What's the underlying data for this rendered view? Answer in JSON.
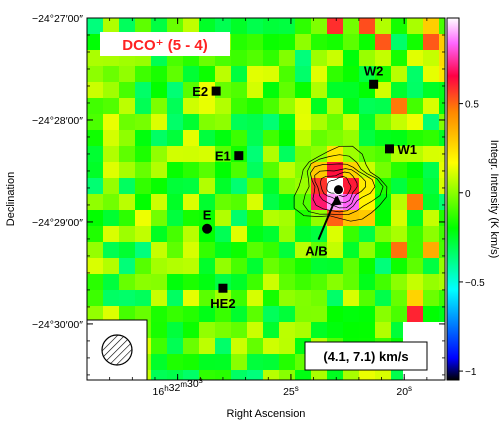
{
  "chart_data": {
    "type": "heatmap",
    "title": "DCO⁺ (5 - 4)",
    "velocity_label": "(4.1, 7.1) km/s",
    "xlabel": "Right Ascension",
    "ylabel": "Declination",
    "colorbar_label": "Integr. Intensity (K km/s)",
    "x_ticks": [
      {
        "label_parts": [
          "16",
          "h",
          "32",
          "m",
          "30",
          "s"
        ],
        "ra_sec": 30
      },
      {
        "label_parts": [
          "25",
          "s"
        ],
        "ra_sec": 25
      },
      {
        "label_parts": [
          "20",
          "s"
        ],
        "ra_sec": 20
      }
    ],
    "y_ticks": [
      {
        "label": "−24°27′00″",
        "dec_arcsec": 0
      },
      {
        "label": "−24°28′00″",
        "dec_arcsec": -60
      },
      {
        "label": "−24°29′00″",
        "dec_arcsec": -120
      },
      {
        "label": "−24°30′00″",
        "dec_arcsec": -180
      }
    ],
    "ra_range_sec": [
      34,
      18.2
    ],
    "dec_range_arcsec": [
      0,
      -213
    ],
    "colorbar": {
      "ticks": [
        {
          "label": "0.5",
          "value": 0.5
        },
        {
          "label": "0",
          "value": 0
        },
        {
          "label": "−0.5",
          "value": -0.5
        },
        {
          "label": "−1",
          "value": -1
        }
      ],
      "range": [
        -1.05,
        0.98
      ],
      "colormap": [
        "#ffffff",
        "#ff66ff",
        "#ff0044",
        "#ff8800",
        "#ffff00",
        "#00ff00",
        "#00ffff",
        "#0000ff",
        "#000000"
      ]
    },
    "sources": [
      {
        "name": "W2",
        "marker": "square",
        "ra_sec": 21.35,
        "dec_arcsec": -39,
        "label_pos": "above"
      },
      {
        "name": "E2",
        "marker": "square",
        "ra_sec": 28.3,
        "dec_arcsec": -43,
        "label_pos": "left"
      },
      {
        "name": "E1",
        "marker": "square",
        "ra_sec": 27.3,
        "dec_arcsec": -81,
        "label_pos": "left"
      },
      {
        "name": "W1",
        "marker": "square",
        "ra_sec": 20.65,
        "dec_arcsec": -77,
        "label_pos": "right"
      },
      {
        "name": "A/B",
        "marker": "circle",
        "ra_sec": 22.9,
        "dec_arcsec": -101,
        "label_pos": "below-arrow"
      },
      {
        "name": "E",
        "marker": "circle",
        "ra_sec": 28.7,
        "dec_arcsec": -124,
        "label_pos": "above"
      },
      {
        "name": "HE2",
        "marker": "square",
        "ra_sec": 28.0,
        "dec_arcsec": -159,
        "label_pos": "below"
      }
    ],
    "peak": {
      "ra_sec": 22.95,
      "dec_arcsec": -101,
      "value": 0.98
    },
    "grid": false,
    "beam": "hatched-circle, lower-left corner"
  }
}
